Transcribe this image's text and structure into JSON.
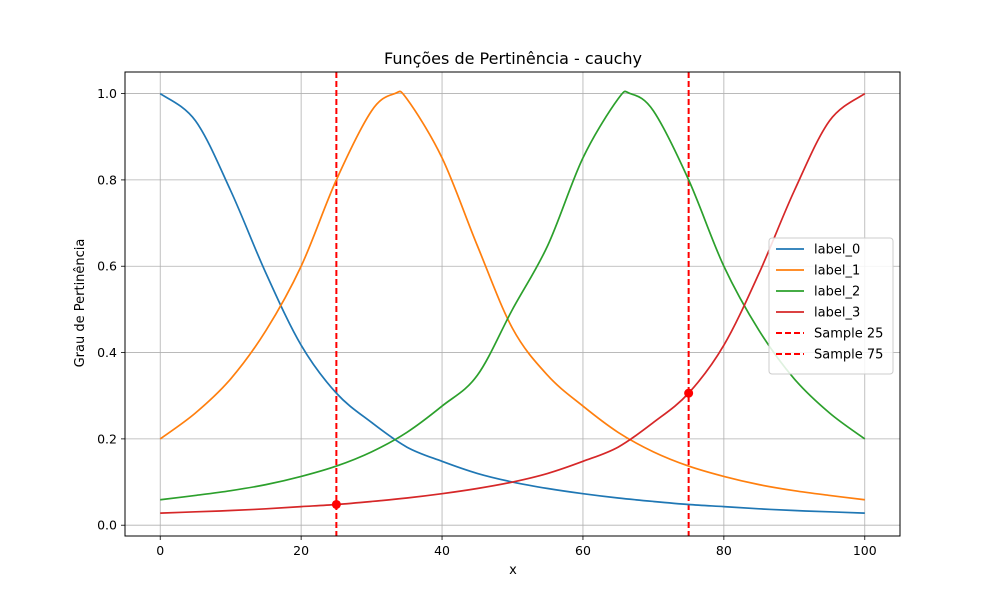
{
  "chart_data": {
    "type": "line",
    "title": "Funções de Pertinência - cauchy",
    "xlabel": "x",
    "ylabel": "Grau de Pertinência",
    "xlim": [
      -5,
      105
    ],
    "ylim": [
      -0.025,
      1.05
    ],
    "xticks": [
      0,
      20,
      40,
      60,
      80,
      100
    ],
    "yticks": [
      0.0,
      0.2,
      0.4,
      0.6,
      0.8,
      1.0
    ],
    "grid": true,
    "legend_position": "center-right",
    "series": [
      {
        "name": "label_0",
        "color": "#1f77b4",
        "x": [
          0,
          5,
          10,
          15,
          20,
          25,
          30,
          35,
          40,
          45,
          50,
          55,
          60,
          65,
          70,
          75,
          80,
          85,
          90,
          95,
          100
        ],
        "y": [
          1.0,
          0.937,
          0.775,
          0.584,
          0.417,
          0.306,
          0.238,
          0.181,
          0.148,
          0.12,
          0.1,
          0.085,
          0.073,
          0.063,
          0.055,
          0.048,
          0.043,
          0.038,
          0.034,
          0.031,
          0.028
        ]
      },
      {
        "name": "label_1",
        "color": "#ff7f0e",
        "x": [
          0,
          5,
          10,
          15,
          20,
          25,
          30,
          33.3,
          35,
          40,
          45,
          50,
          55,
          60,
          65,
          70,
          75,
          80,
          85,
          90,
          95,
          100
        ],
        "y": [
          0.2,
          0.26,
          0.339,
          0.451,
          0.6,
          0.8,
          0.96,
          1.0,
          0.988,
          0.851,
          0.648,
          0.456,
          0.347,
          0.276,
          0.215,
          0.17,
          0.137,
          0.113,
          0.094,
          0.08,
          0.069,
          0.059
        ]
      },
      {
        "name": "label_2",
        "color": "#2ca02c",
        "x": [
          0,
          5,
          10,
          15,
          20,
          25,
          30,
          35,
          40,
          45,
          50,
          55,
          60,
          65,
          66.7,
          70,
          75,
          80,
          85,
          90,
          95,
          100
        ],
        "y": [
          0.059,
          0.069,
          0.08,
          0.094,
          0.113,
          0.137,
          0.17,
          0.215,
          0.276,
          0.347,
          0.5,
          0.648,
          0.851,
          0.988,
          1.0,
          0.96,
          0.8,
          0.6,
          0.451,
          0.339,
          0.26,
          0.2
        ]
      },
      {
        "name": "label_3",
        "color": "#d62728",
        "x": [
          0,
          5,
          10,
          15,
          20,
          25,
          30,
          35,
          40,
          45,
          50,
          55,
          60,
          65,
          70,
          75,
          80,
          85,
          90,
          95,
          100
        ],
        "y": [
          0.028,
          0.031,
          0.034,
          0.038,
          0.043,
          0.048,
          0.055,
          0.063,
          0.073,
          0.085,
          0.1,
          0.12,
          0.148,
          0.181,
          0.238,
          0.306,
          0.417,
          0.584,
          0.775,
          0.937,
          1.0
        ]
      }
    ],
    "vlines": [
      {
        "name": "Sample 25",
        "x": 25,
        "color": "#ff0000",
        "style": "dashed"
      },
      {
        "name": "Sample 75",
        "x": 75,
        "color": "#ff0000",
        "style": "dashed"
      }
    ],
    "points": [
      {
        "x": 25,
        "y": 0.048,
        "color": "#ff0000"
      },
      {
        "x": 75,
        "y": 0.306,
        "color": "#ff0000"
      }
    ]
  }
}
